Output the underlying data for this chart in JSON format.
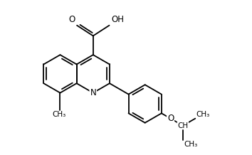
{
  "background_color": "#ffffff",
  "bond_color": "#000000",
  "text_color": "#000000",
  "figsize": [
    3.54,
    2.18
  ],
  "dpi": 100,
  "bond_lw": 1.3,
  "font_size": 8.5,
  "small_font_size": 7.5,
  "xlim": [
    0,
    9.5
  ],
  "ylim": [
    0,
    6.2
  ]
}
